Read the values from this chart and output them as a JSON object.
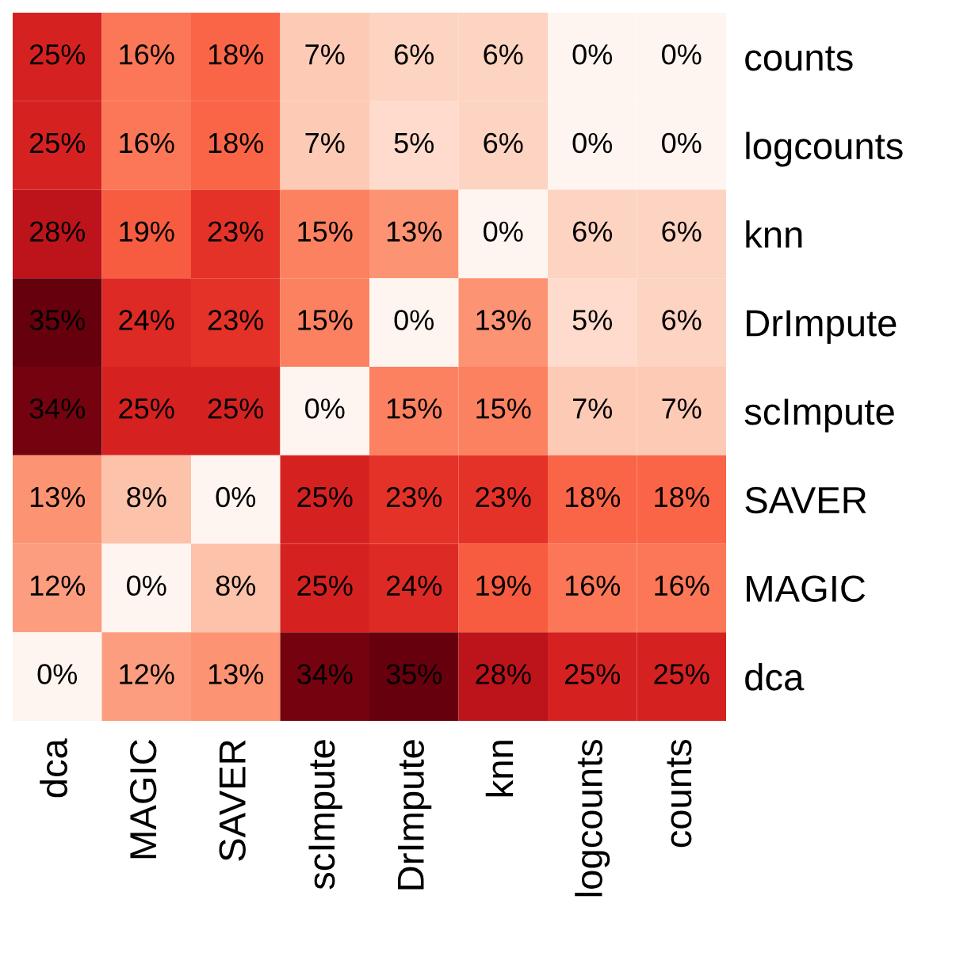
{
  "chart_data": {
    "type": "heatmap",
    "categories": [
      "dca",
      "MAGIC",
      "SAVER",
      "scImpute",
      "DrImpute",
      "knn",
      "logcounts",
      "counts"
    ],
    "y_categories": [
      "counts",
      "logcounts",
      "knn",
      "DrImpute",
      "scImpute",
      "SAVER",
      "MAGIC",
      "dca"
    ],
    "cells": [
      [
        25,
        16,
        18,
        7,
        6,
        6,
        0,
        0
      ],
      [
        25,
        16,
        18,
        7,
        5,
        6,
        0,
        0
      ],
      [
        28,
        19,
        23,
        15,
        13,
        0,
        6,
        6
      ],
      [
        35,
        24,
        23,
        15,
        0,
        13,
        5,
        6
      ],
      [
        34,
        25,
        25,
        0,
        15,
        15,
        7,
        7
      ],
      [
        13,
        8,
        0,
        25,
        23,
        23,
        18,
        18
      ],
      [
        12,
        0,
        8,
        25,
        24,
        19,
        16,
        16
      ],
      [
        0,
        12,
        13,
        34,
        35,
        28,
        25,
        25
      ]
    ],
    "cell_labels": [
      [
        "25%",
        "16%",
        "18%",
        "7%",
        "6%",
        "6%",
        "0%",
        "0%"
      ],
      [
        "25%",
        "16%",
        "18%",
        "7%",
        "5%",
        "6%",
        "0%",
        "0%"
      ],
      [
        "28%",
        "19%",
        "23%",
        "15%",
        "13%",
        "0%",
        "6%",
        "6%"
      ],
      [
        "35%",
        "24%",
        "23%",
        "15%",
        "0%",
        "13%",
        "5%",
        "6%"
      ],
      [
        "34%",
        "25%",
        "25%",
        "0%",
        "15%",
        "15%",
        "7%",
        "7%"
      ],
      [
        "13%",
        "8%",
        "0%",
        "25%",
        "23%",
        "23%",
        "18%",
        "18%"
      ],
      [
        "12%",
        "0%",
        "8%",
        "25%",
        "24%",
        "19%",
        "16%",
        "16%"
      ],
      [
        "0%",
        "12%",
        "13%",
        "34%",
        "35%",
        "28%",
        "25%",
        "25%"
      ]
    ]
  }
}
